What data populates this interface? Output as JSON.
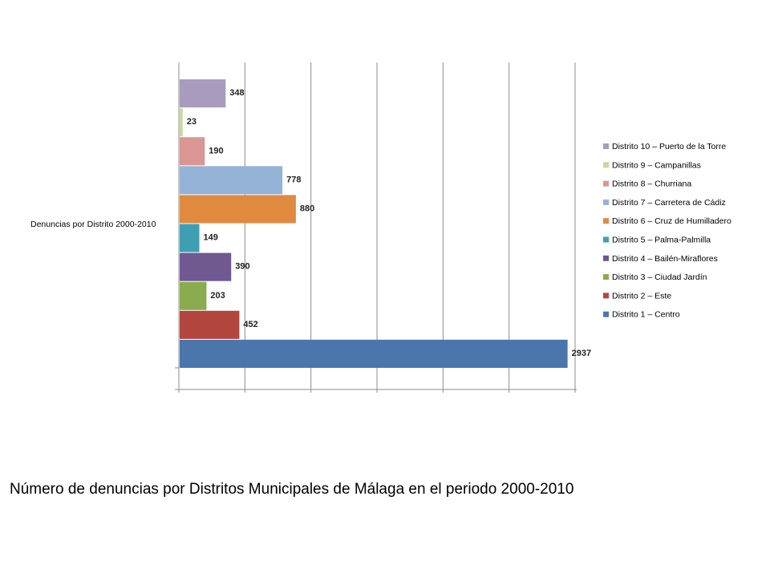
{
  "caption": "Número de denuncias por Distritos Municipales de Málaga en el periodo 2000-2010",
  "chart_data": {
    "type": "bar",
    "orientation": "horizontal",
    "category_axis_label": "Denuncias por Distrito 2000-2010",
    "xlim": [
      0,
      3000
    ],
    "x_tick_step": 500,
    "grid": "vertical",
    "legend_position": "right",
    "series": [
      {
        "name": "Distrito 10 – Puerto de la Torre",
        "value": 348,
        "color": "#a99bbd"
      },
      {
        "name": "Distrito 9 – Campanillas",
        "value": 23,
        "color": "#c6d9a1"
      },
      {
        "name": "Distrito 8 – Churriana",
        "value": 190,
        "color": "#d99694"
      },
      {
        "name": "Distrito 7 – Carretera de Cádiz",
        "value": 778,
        "color": "#95b3d7"
      },
      {
        "name": "Distrito 6 – Cruz de Humilladero",
        "value": 880,
        "color": "#e08a3f"
      },
      {
        "name": "Distrito 5 – Palma-Palmilla",
        "value": 149,
        "color": "#3e9fb3"
      },
      {
        "name": "Distrito 4 – Bailén-Miraflores",
        "value": 390,
        "color": "#705890"
      },
      {
        "name": "Distrito 3 – Ciudad Jardín",
        "value": 203,
        "color": "#8aab4e"
      },
      {
        "name": "Distrito 2 – Este",
        "value": 452,
        "color": "#b2463f"
      },
      {
        "name": "Distrito 1 – Centro",
        "value": 2937,
        "color": "#4a76ac"
      }
    ]
  }
}
